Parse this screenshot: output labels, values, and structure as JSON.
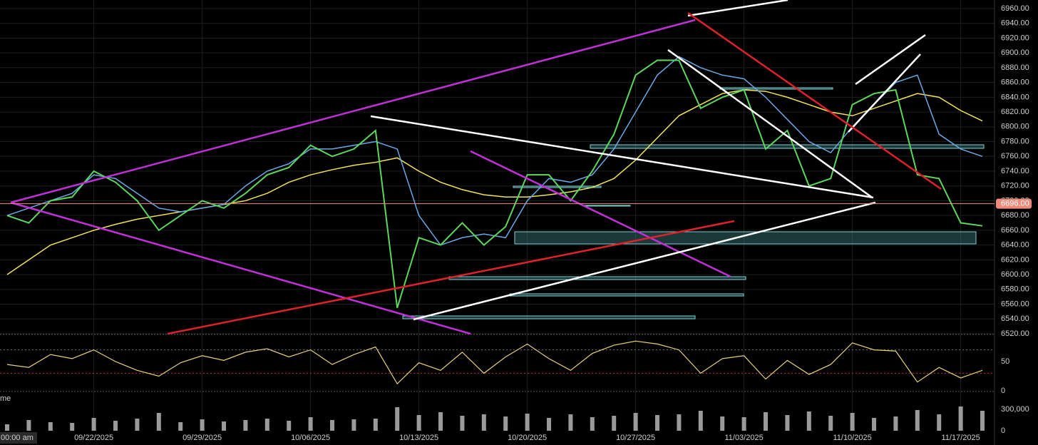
{
  "chart_data": {
    "type": "line",
    "grid": true,
    "x_start_label": "00:00 am",
    "categories": [
      null,
      null,
      null,
      null,
      "09/22/2025",
      null,
      null,
      null,
      null,
      "09/29/2025",
      null,
      null,
      null,
      null,
      "10/06/2025",
      null,
      null,
      null,
      null,
      "10/13/2025",
      null,
      null,
      null,
      null,
      "10/20/2025",
      null,
      null,
      null,
      null,
      "10/27/2025",
      null,
      null,
      null,
      null,
      "11/03/2025",
      null,
      null,
      null,
      null,
      "11/10/2025",
      null,
      null,
      null,
      null,
      "11/17/2025",
      null
    ],
    "ylim": [
      6520,
      6960
    ],
    "yticks": [
      {
        "value": 6960,
        "label": "6960.00"
      },
      {
        "value": 6940,
        "label": "6940.00"
      },
      {
        "value": 6920,
        "label": "6920.00"
      },
      {
        "value": 6900,
        "label": "6900.00"
      },
      {
        "value": 6880,
        "label": "6880.00"
      },
      {
        "value": 6860,
        "label": "6860.00"
      },
      {
        "value": 6840,
        "label": "6840.00"
      },
      {
        "value": 6820,
        "label": "6820.00"
      },
      {
        "value": 6800,
        "label": "6800.00"
      },
      {
        "value": 6780,
        "label": "6780.00"
      },
      {
        "value": 6760,
        "label": "6760.00"
      },
      {
        "value": 6740,
        "label": "6740.00"
      },
      {
        "value": 6720,
        "label": "6720.00"
      },
      {
        "value": 6700,
        "label": "6700.00"
      },
      {
        "value": 6680,
        "label": "6680.00"
      },
      {
        "value": 6660,
        "label": "6660.00"
      },
      {
        "value": 6640,
        "label": "6640.00"
      },
      {
        "value": 6620,
        "label": "6620.00"
      },
      {
        "value": 6600,
        "label": "6600.00"
      },
      {
        "value": 6580,
        "label": "6580.00"
      },
      {
        "value": 6560,
        "label": "6560.00"
      },
      {
        "value": 6540,
        "label": "6540.00"
      },
      {
        "value": 6520,
        "label": "6520.00"
      }
    ],
    "series": [
      {
        "color": "#5cd65c",
        "values": [
          6680,
          6670,
          6700,
          6705,
          6740,
          6725,
          6700,
          6660,
          6680,
          6700,
          6690,
          6710,
          6735,
          6745,
          6775,
          6760,
          6770,
          6795,
          6555,
          6650,
          6640,
          6670,
          6640,
          6665,
          6735,
          6735,
          6700,
          6740,
          6790,
          6870,
          6890,
          6890,
          6825,
          6840,
          6850,
          6770,
          6795,
          6720,
          6730,
          6830,
          6845,
          6850,
          6735,
          6730,
          6670,
          6666
        ]
      },
      {
        "color": "#6aa8e8",
        "values": [
          6680,
          6690,
          6700,
          6710,
          6735,
          6730,
          6710,
          6690,
          6685,
          6690,
          6695,
          6720,
          6740,
          6750,
          6770,
          6770,
          6775,
          6780,
          6770,
          6680,
          6640,
          6650,
          6655,
          6650,
          6700,
          6730,
          6725,
          6735,
          6770,
          6820,
          6870,
          6895,
          6880,
          6870,
          6865,
          6840,
          6810,
          6780,
          6765,
          6800,
          6830,
          6860,
          6870,
          6790,
          6770,
          6760
        ]
      },
      {
        "color": "#f2e35a",
        "values": [
          6600,
          6620,
          6640,
          6650,
          6660,
          6668,
          6675,
          6680,
          6685,
          6690,
          6695,
          6700,
          6710,
          6725,
          6735,
          6742,
          6748,
          6752,
          6758,
          6740,
          6725,
          6715,
          6708,
          6705,
          6705,
          6708,
          6712,
          6718,
          6730,
          6755,
          6785,
          6815,
          6830,
          6845,
          6850,
          6848,
          6840,
          6830,
          6820,
          6815,
          6825,
          6835,
          6845,
          6840,
          6822,
          6808
        ]
      }
    ],
    "current_price": {
      "value": 6696,
      "label": "6696.00",
      "color": "#f08a7a"
    },
    "rsi": {
      "color": "#e8d27a",
      "ylim": [
        0,
        100
      ],
      "yticks": [
        50,
        0
      ],
      "levels": [
        70,
        30
      ],
      "values": [
        45,
        40,
        62,
        55,
        70,
        50,
        35,
        25,
        48,
        60,
        52,
        66,
        72,
        58,
        70,
        45,
        62,
        75,
        12,
        48,
        35,
        66,
        30,
        58,
        80,
        55,
        35,
        64,
        78,
        85,
        80,
        70,
        30,
        55,
        60,
        20,
        52,
        28,
        45,
        82,
        70,
        68,
        15,
        40,
        22,
        35
      ]
    },
    "volume": {
      "color": "#9a9a9a",
      "label": "me",
      "ylim": [
        0,
        360000
      ],
      "yticks": [
        {
          "value": 300000,
          "label": "300,000"
        },
        0
      ],
      "values": [
        90000,
        150000,
        120000,
        110000,
        180000,
        140000,
        170000,
        250000,
        120000,
        160000,
        130000,
        150000,
        170000,
        140000,
        190000,
        150000,
        160000,
        170000,
        330000,
        220000,
        260000,
        210000,
        230000,
        200000,
        240000,
        180000,
        230000,
        190000,
        210000,
        250000,
        220000,
        230000,
        280000,
        200000,
        190000,
        260000,
        220000,
        270000,
        210000,
        250000,
        180000,
        200000,
        290000,
        230000,
        340000,
        280000
      ]
    }
  }
}
